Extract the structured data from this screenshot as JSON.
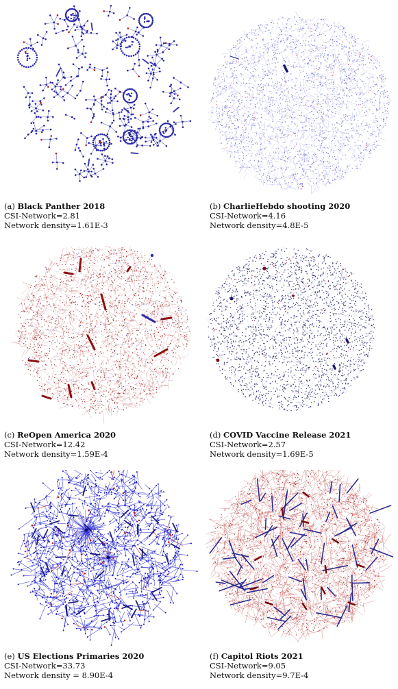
{
  "figure": {
    "panels": [
      {
        "id": "a",
        "letter": "(a)",
        "title": "Black Panther 2018",
        "metric": "CSI-Network=2.81",
        "density": "Network density=1.61E-3",
        "style": "sparse-clusters",
        "colors": {
          "node": "#2a2aa8",
          "edge": "#2a2aa8",
          "accent": "#b02020"
        }
      },
      {
        "id": "b",
        "letter": "(b)",
        "title": "CharlieHebdo shooting 2020",
        "metric": "CSI-Network=4.16",
        "density": "Network density=4.8E-5",
        "style": "dense-cloud",
        "colors": {
          "node": "#6a6ad0",
          "edge": "#7a7ae0",
          "accent": "#c04040"
        }
      },
      {
        "id": "c",
        "letter": "(c)",
        "title": "ReOpen America 2020",
        "metric": "CSI-Network=12.42",
        "density": "Network density=1.59E-4",
        "style": "red-cloud",
        "colors": {
          "node": "#a02828",
          "edge": "#b54040",
          "accent": "#2a2aa8"
        }
      },
      {
        "id": "d",
        "letter": "(d)",
        "title": "COVID Vaccine Release 2021",
        "metric": "CSI-Network=2.57",
        "density": "Network density=1.69E-5",
        "style": "dot-cloud",
        "colors": {
          "node": "#2a2a70",
          "edge": "#4a4aa0",
          "accent": "#8a1a1a"
        }
      },
      {
        "id": "e",
        "letter": "(e)",
        "title": "US Elections Primaries 2020",
        "metric": "CSI-Network=33.73",
        "density": "Network density = 8.90E-4",
        "style": "blue-web",
        "colors": {
          "node": "#1e1ec0",
          "edge": "#3a3ad8",
          "accent": "#c02020"
        }
      },
      {
        "id": "f",
        "letter": "(f)",
        "title": "Capitol Riots 2021",
        "metric": "CSI-Network=9.05",
        "density": "Network density=9.7E-4",
        "style": "red-web",
        "colors": {
          "node": "#a01818",
          "edge": "#b83030",
          "accent": "#22228a"
        }
      }
    ]
  }
}
